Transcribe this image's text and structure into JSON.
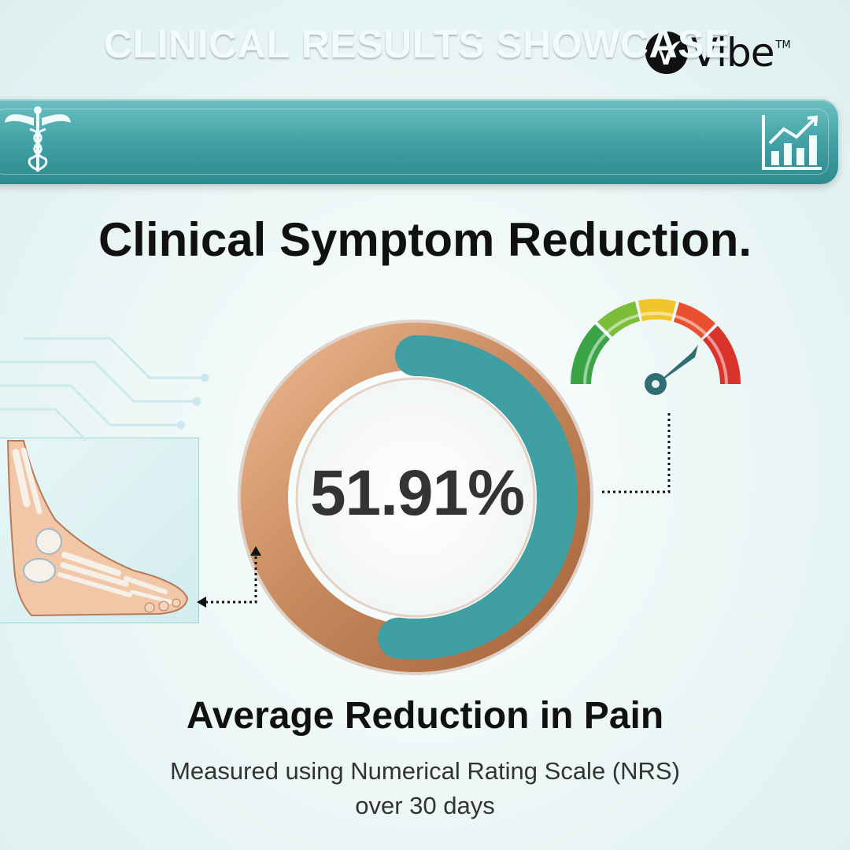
{
  "brand": {
    "name": "Vibe",
    "trademark": "TM"
  },
  "banner": {
    "title": "CLINICAL RESULTS SHOWCASE",
    "left_icon": "caduceus-icon",
    "right_icon": "bar-chart-growth-icon"
  },
  "heading": "Clinical Symptom Reduction.",
  "metric": {
    "value": "51.91%",
    "fraction": 0.5191
  },
  "subtitle": "Average Reduction in Pain",
  "caption": "Measured using Numerical Rating Scale (NRS) over 30 days",
  "illustrations": {
    "foot": "foot-skeleton-icon",
    "gauge": "pain-gauge-icon"
  },
  "colors": {
    "teal": "#3f9fa2",
    "copper": "#c98a5e",
    "gauge_green": "#3aa447",
    "gauge_yellow": "#f1c62a",
    "gauge_red": "#d9332b"
  }
}
